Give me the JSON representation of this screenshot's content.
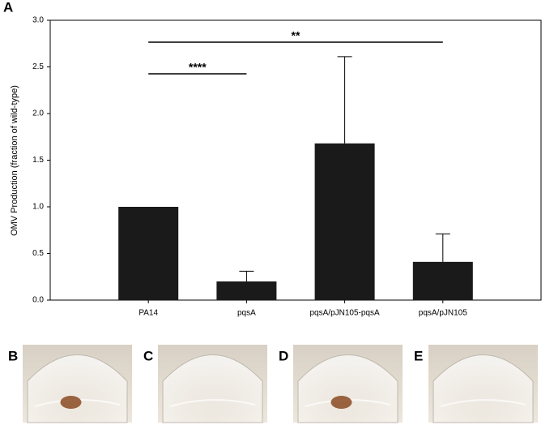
{
  "chart_data": {
    "type": "bar",
    "panel_label": "A",
    "y_label": "OMV Production (fraction of wild-type)",
    "categories": [
      "PA14",
      "pqsA",
      "pqsA/pJN105-pqsA",
      "pqsA/pJN105"
    ],
    "values": [
      1.0,
      0.2,
      1.68,
      0.41
    ],
    "errors": [
      null,
      0.11,
      0.93,
      0.3
    ],
    "color": "#1a1a1a",
    "ylim": [
      0,
      3
    ],
    "yticks": [
      {
        "value": 0,
        "label": "0.0"
      },
      {
        "value": 0.5,
        "label": "0.5"
      },
      {
        "value": 1,
        "label": "1.0"
      },
      {
        "value": 1.5,
        "label": "1.5"
      },
      {
        "value": 2,
        "label": "2.0"
      },
      {
        "value": 2.5,
        "label": "2.5"
      },
      {
        "value": 3,
        "label": "3.0"
      }
    ],
    "annotations": [
      "**",
      "****"
    ]
  },
  "photos": {
    "labels": [
      "B",
      "C",
      "D",
      "E"
    ]
  }
}
